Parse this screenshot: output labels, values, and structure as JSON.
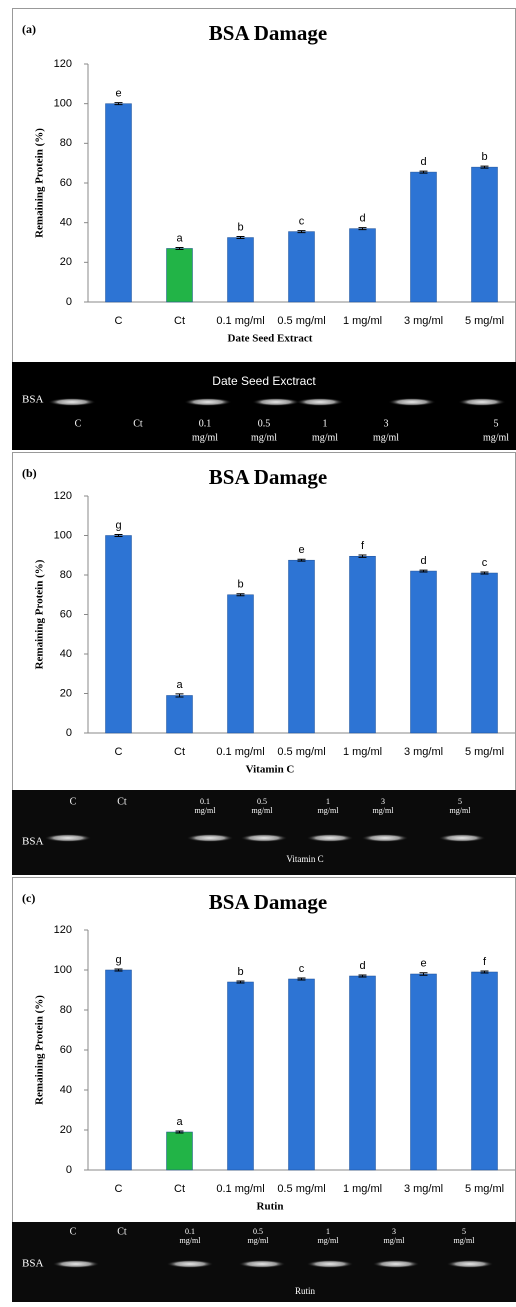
{
  "chart_data": [
    {
      "type": "bar",
      "panel": "(a)",
      "title": "BSA Damage",
      "ylabel": "Remaining  Protein (%)",
      "xlabel": "Date  Seed Extract",
      "categories": [
        "C",
        "Ct",
        "0.1 mg/ml",
        "0.5 mg/ml",
        "1 mg/ml",
        "3 mg/ml",
        "5 mg/ml"
      ],
      "values": [
        100,
        27,
        32.5,
        35.5,
        37,
        65.5,
        68
      ],
      "errors": [
        0.5,
        0.5,
        0.5,
        0.5,
        0.5,
        0.5,
        0.5
      ],
      "letters": [
        "e",
        "a",
        "b",
        "c",
        "d",
        "d",
        "b"
      ],
      "colors": [
        "#2d74d4",
        "#22b447",
        "#2d74d4",
        "#2d74d4",
        "#2d74d4",
        "#2d74d4",
        "#2d74d4"
      ],
      "ylim": [
        0,
        120
      ],
      "yticks": [
        0,
        20,
        40,
        60,
        80,
        100,
        120
      ]
    },
    {
      "type": "bar",
      "panel": "(b)",
      "title": "BSA Damage",
      "ylabel": "Remaining  Protein (%)",
      "xlabel": "Vitamin  C",
      "categories": [
        "C",
        "Ct",
        "0.1 mg/ml",
        "0.5 mg/ml",
        "1 mg/ml",
        "3 mg/ml",
        "5 mg/ml"
      ],
      "values": [
        100,
        19,
        70,
        87.5,
        89.5,
        82,
        81
      ],
      "errors": [
        0.5,
        0.8,
        0.5,
        0.5,
        0.6,
        0.5,
        0.5
      ],
      "letters": [
        "g",
        "a",
        "b",
        "e",
        "f",
        "d",
        "c"
      ],
      "colors": [
        "#2d74d4",
        "#2d74d4",
        "#2d74d4",
        "#2d74d4",
        "#2d74d4",
        "#2d74d4",
        "#2d74d4"
      ],
      "ylim": [
        0,
        120
      ],
      "yticks": [
        0,
        20,
        40,
        60,
        80,
        100,
        120
      ]
    },
    {
      "type": "bar",
      "panel": "(c)",
      "title": "BSA Damage",
      "ylabel": "Remaining  Protein (%)",
      "xlabel": "Rutin",
      "categories": [
        "C",
        "Ct",
        "0.1 mg/ml",
        "0.5 mg/ml",
        "1 mg/ml",
        "3 mg/ml",
        "5 mg/ml"
      ],
      "values": [
        100,
        19,
        94,
        95.5,
        97,
        98,
        99
      ],
      "errors": [
        0.5,
        0.5,
        0.5,
        0.5,
        0.5,
        0.6,
        0.5
      ],
      "letters": [
        "g",
        "a",
        "b",
        "c",
        "d",
        "e",
        "f"
      ],
      "colors": [
        "#2d74d4",
        "#22b447",
        "#2d74d4",
        "#2d74d4",
        "#2d74d4",
        "#2d74d4",
        "#2d74d4"
      ],
      "ylim": [
        0,
        120
      ],
      "yticks": [
        0,
        20,
        40,
        60,
        80,
        100,
        120
      ]
    }
  ],
  "gels": [
    {
      "marker": "BSA",
      "caption": "Date Seed Exctract",
      "lanes": [
        [
          "C"
        ],
        [
          "Ct"
        ],
        [
          "0.1",
          "mg/ml"
        ],
        [
          "0.5",
          "mg/ml"
        ],
        [
          "1",
          "mg/ml"
        ],
        [
          "3",
          "mg/ml"
        ],
        [
          "5",
          "mg/ml"
        ]
      ]
    },
    {
      "marker": "BSA",
      "caption": "Vitamin C",
      "lanes": [
        [
          "C"
        ],
        [
          "Ct"
        ],
        [
          "0.1",
          "mg/ml"
        ],
        [
          "0.5",
          "mg/ml"
        ],
        [
          "1",
          "mg/ml"
        ],
        [
          "3",
          "mg/ml"
        ],
        [
          "5",
          "mg/ml"
        ]
      ]
    },
    {
      "marker": "BSA",
      "caption": "Rutin",
      "lanes": [
        [
          "C"
        ],
        [
          "Ct"
        ],
        [
          "0.1",
          "mg/ml"
        ],
        [
          "0.5",
          "mg/ml"
        ],
        [
          "1",
          "mg/ml"
        ],
        [
          "3",
          "mg/ml"
        ],
        [
          "5",
          "mg/ml"
        ]
      ]
    }
  ]
}
